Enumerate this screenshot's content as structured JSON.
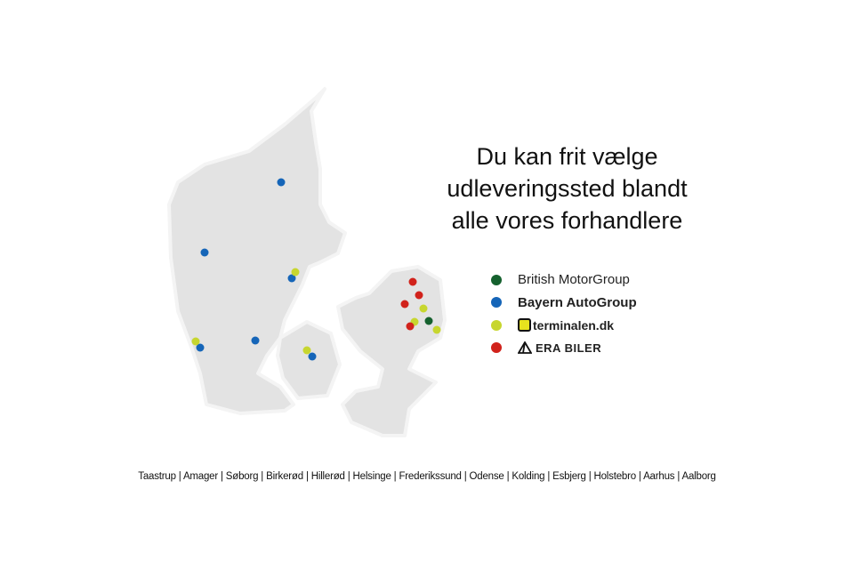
{
  "headline": [
    "Du kan frit vælge",
    "udleveringssted blandt",
    "alle vores forhandlere"
  ],
  "legend": [
    {
      "label": "British MotorGroup",
      "color": "#15612e",
      "icon": "none"
    },
    {
      "label": "Bayern AutoGroup",
      "color": "#1565b8",
      "icon": "none"
    },
    {
      "label": "terminalen.dk",
      "color": "#c7d62f",
      "icon": "terminalen-logo-icon"
    },
    {
      "label": "ERA BILER",
      "color": "#d1221b",
      "icon": "era-triangle-logo-icon"
    }
  ],
  "cities": [
    "Taastrup",
    "Amager",
    "Søborg",
    "Birkerød",
    "Hillerød",
    "Helsinge",
    "Frederikssund",
    "Odense",
    "Kolding",
    "Esbjerg",
    "Holstebro",
    "Aarhus",
    "Aalborg"
  ],
  "colors": {
    "land": "#e3e3e3",
    "outline": "#ffffff"
  }
}
